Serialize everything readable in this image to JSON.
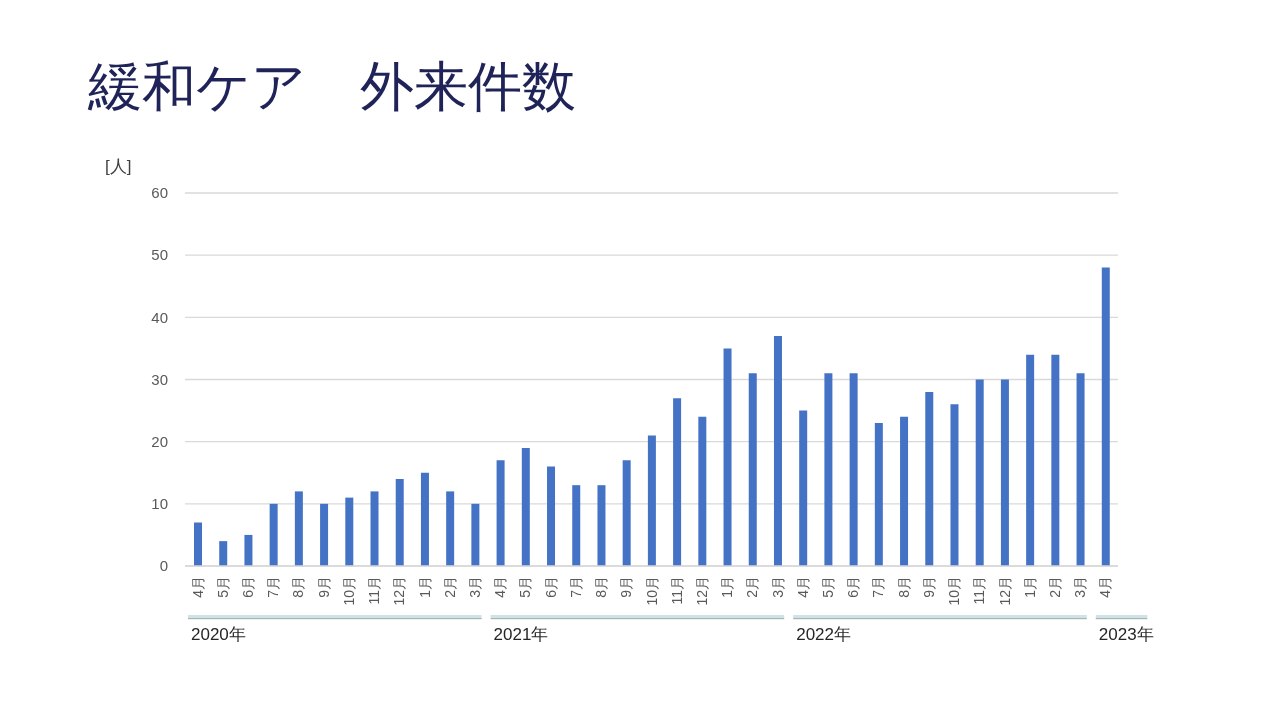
{
  "chart_data": {
    "type": "bar",
    "title": "緩和ケア　外来件数",
    "ylabel": "[人]",
    "categories": [
      "4月",
      "5月",
      "6月",
      "7月",
      "8月",
      "9月",
      "10月",
      "11月",
      "12月",
      "1月",
      "2月",
      "3月",
      "4月",
      "5月",
      "6月",
      "7月",
      "8月",
      "9月",
      "10月",
      "11月",
      "12月",
      "1月",
      "2月",
      "3月",
      "4月",
      "5月",
      "6月",
      "7月",
      "8月",
      "9月",
      "10月",
      "11月",
      "12月",
      "1月",
      "2月",
      "3月",
      "4月"
    ],
    "values": [
      7,
      4,
      5,
      10,
      12,
      10,
      11,
      12,
      14,
      15,
      12,
      10,
      17,
      19,
      16,
      13,
      13,
      17,
      21,
      27,
      24,
      35,
      31,
      37,
      25,
      31,
      31,
      23,
      24,
      28,
      26,
      30,
      30,
      34,
      34,
      31,
      48
    ],
    "color": "#4472c4",
    "ylim": [
      0,
      60
    ],
    "yticks": [
      0,
      10,
      20,
      30,
      40,
      50,
      60
    ],
    "grid": "y",
    "annotations": [
      "2020年",
      "2021年",
      "2022年",
      "2023年"
    ]
  }
}
